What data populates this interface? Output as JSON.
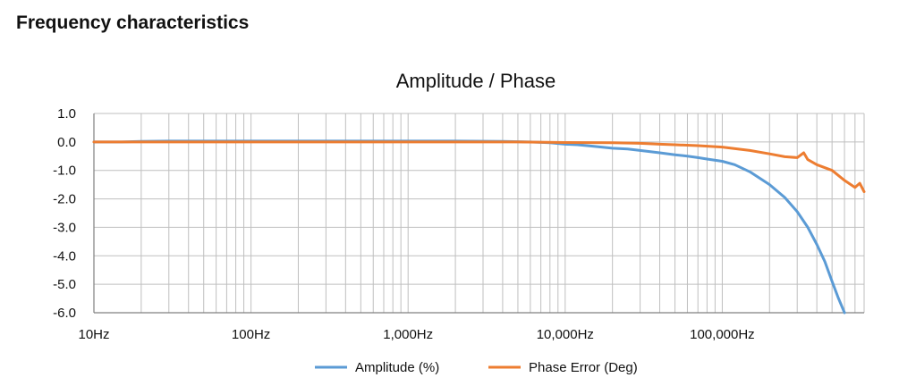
{
  "page": {
    "heading": "Frequency characteristics"
  },
  "chart_data": {
    "type": "line",
    "title": "Amplitude / Phase",
    "xscale": "log",
    "xlim": [
      10,
      800000
    ],
    "ylim": [
      -6,
      1
    ],
    "yticks": [
      1.0,
      0.0,
      -1.0,
      -2.0,
      -3.0,
      -4.0,
      -5.0,
      -6.0
    ],
    "ytick_labels": [
      "1.0",
      "0.0",
      "-1.0",
      "-2.0",
      "-3.0",
      "-4.0",
      "-5.0",
      "-6.0"
    ],
    "xticks": [
      10,
      100,
      1000,
      10000,
      100000
    ],
    "xtick_labels": [
      "10Hz",
      "100Hz",
      "1,000Hz",
      "10,000Hz",
      "100,000Hz"
    ],
    "grid": true,
    "legend_position": "bottom",
    "colors": {
      "amplitude": "#5B9BD5",
      "phase": "#ED7D31",
      "grid": "#bfbfbf",
      "axis": "#808080"
    },
    "series": [
      {
        "name": "Amplitude (%)",
        "x": [
          10,
          15,
          20,
          30,
          50,
          100,
          200,
          500,
          1000,
          2000,
          4000,
          6000,
          8000,
          10000,
          12000,
          15000,
          20000,
          25000,
          30000,
          40000,
          50000,
          60000,
          70000,
          80000,
          100000,
          120000,
          150000,
          200000,
          250000,
          300000,
          350000,
          400000,
          450000,
          500000,
          550000,
          600000
        ],
        "values": [
          0.0,
          0.0,
          0.02,
          0.03,
          0.03,
          0.03,
          0.03,
          0.03,
          0.03,
          0.03,
          0.02,
          0.0,
          -0.03,
          -0.08,
          -0.1,
          -0.15,
          -0.22,
          -0.25,
          -0.3,
          -0.38,
          -0.45,
          -0.5,
          -0.55,
          -0.6,
          -0.68,
          -0.8,
          -1.05,
          -1.5,
          -1.95,
          -2.45,
          -3.0,
          -3.6,
          -4.2,
          -4.9,
          -5.5,
          -6.0
        ]
      },
      {
        "name": "Phase Error (Deg)",
        "x": [
          10,
          20,
          50,
          100,
          200,
          500,
          1000,
          2000,
          5000,
          10000,
          20000,
          30000,
          40000,
          50000,
          70000,
          100000,
          150000,
          200000,
          250000,
          300000,
          330000,
          350000,
          400000,
          500000,
          600000,
          700000,
          750000,
          800000
        ],
        "values": [
          0.0,
          0.0,
          0.0,
          0.0,
          0.0,
          0.0,
          0.0,
          0.0,
          0.0,
          -0.02,
          -0.03,
          -0.05,
          -0.08,
          -0.1,
          -0.13,
          -0.18,
          -0.3,
          -0.42,
          -0.52,
          -0.55,
          -0.38,
          -0.62,
          -0.8,
          -1.0,
          -1.35,
          -1.6,
          -1.45,
          -1.75
        ]
      }
    ]
  }
}
